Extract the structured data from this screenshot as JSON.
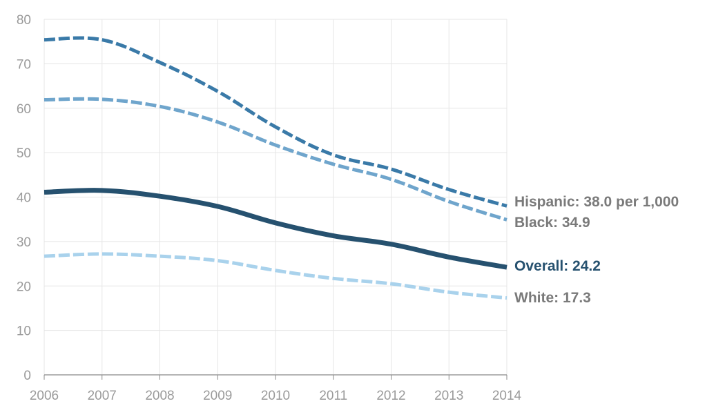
{
  "chart_data": {
    "type": "line",
    "x": [
      2006,
      2007,
      2008,
      2009,
      2010,
      2011,
      2012,
      2013,
      2014
    ],
    "xlim": [
      2006,
      2014
    ],
    "ylim": [
      0,
      80
    ],
    "yticks": [
      0,
      10,
      20,
      30,
      40,
      50,
      60,
      70,
      80
    ],
    "xticks": [
      2006,
      2007,
      2008,
      2009,
      2010,
      2011,
      2012,
      2013,
      2014
    ],
    "grid": true,
    "title": "",
    "xlabel": "",
    "ylabel": "",
    "series": [
      {
        "key": "hispanic",
        "label": "Hispanic: 38.0 per 1,000",
        "color": "#3a7aa8",
        "style": "dashed",
        "values": [
          75.4,
          75.4,
          70.3,
          63.8,
          55.8,
          49.5,
          46.3,
          41.7,
          38.0
        ]
      },
      {
        "key": "black",
        "label": "Black: 34.9",
        "color": "#6fa5cc",
        "style": "dashed",
        "values": [
          61.9,
          62.0,
          60.4,
          56.9,
          51.7,
          47.4,
          44.0,
          39.0,
          34.9
        ]
      },
      {
        "key": "overall",
        "label": "Overall: 24.2",
        "color": "#26516f",
        "style": "solid",
        "values": [
          41.1,
          41.5,
          40.2,
          37.9,
          34.2,
          31.3,
          29.4,
          26.5,
          24.2
        ]
      },
      {
        "key": "white",
        "label": "White: 17.3",
        "color": "#a9d2ec",
        "style": "dashed",
        "values": [
          26.7,
          27.2,
          26.7,
          25.7,
          23.5,
          21.7,
          20.5,
          18.6,
          17.3
        ]
      }
    ]
  },
  "colors": {
    "grid": "#e5e5e5",
    "axis": "#888888",
    "tick_text": "#9a9a9a",
    "label_text": "#7a7a7a"
  }
}
